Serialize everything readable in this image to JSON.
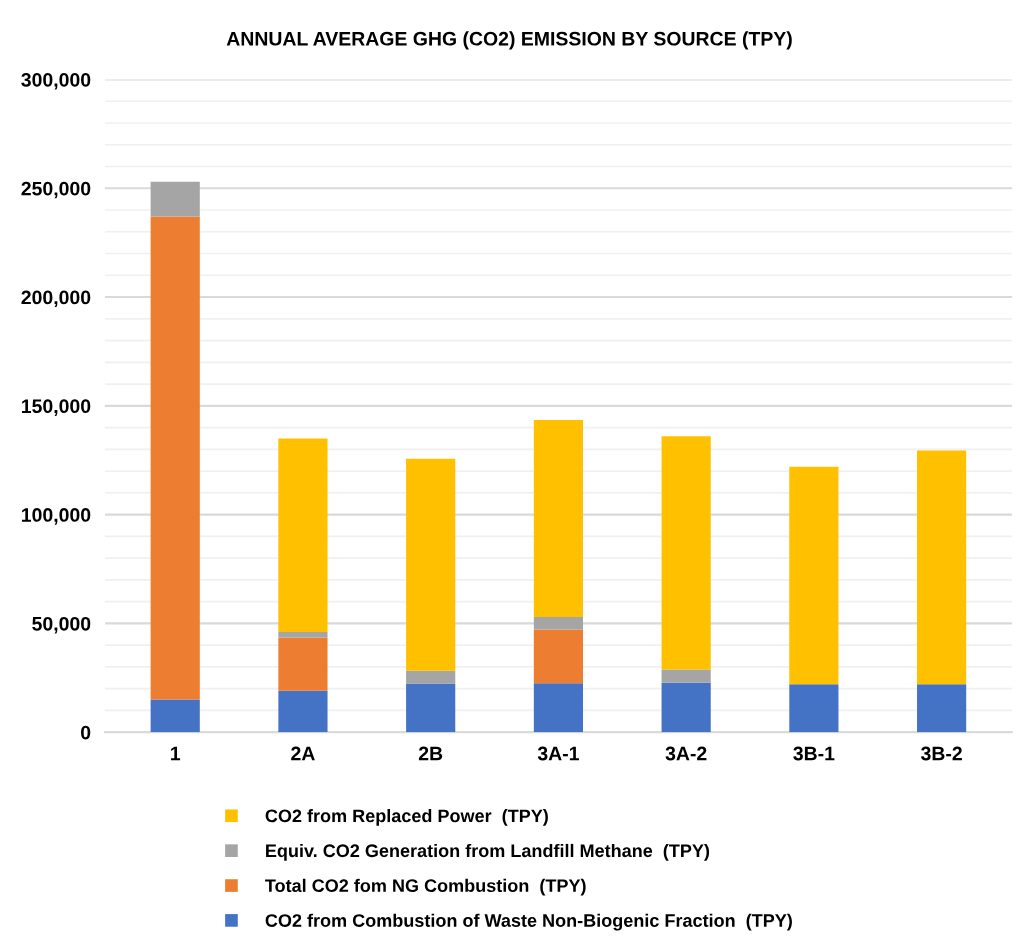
{
  "chart_data": {
    "type": "bar",
    "title": "ANNUAL AVERAGE GHG (CO2) EMISSION BY SOURCE (TPY)",
    "categories": [
      "1",
      "2A",
      "2B",
      "3A-1",
      "3A-2",
      "3B-1",
      "3B-2"
    ],
    "stacked": true,
    "series": [
      {
        "name": "CO2 from Combustion of Waste Non-Biogenic Fraction  (TPY)",
        "color": "#4472c4",
        "values": [
          15000,
          19000,
          22400,
          22500,
          22700,
          22000,
          22000
        ]
      },
      {
        "name": "Total CO2 fom NG Combustion  (TPY)",
        "color": "#ed7d31",
        "values": [
          222000,
          24500,
          0,
          24700,
          0,
          0,
          0
        ]
      },
      {
        "name": "Equiv. CO2 Generation from Landfill Methane  (TPY)",
        "color": "#a5a5a5",
        "values": [
          16000,
          2500,
          5800,
          5800,
          6100,
          null,
          null
        ]
      },
      {
        "name": "CO2 from Replaced Power  (TPY)",
        "color": "#ffc000",
        "values": [
          0,
          89000,
          97500,
          90500,
          107200,
          100000,
          107500
        ]
      }
    ],
    "ylim": [
      0,
      300000
    ],
    "yticks": [
      {
        "value": 0,
        "label": "0"
      },
      {
        "value": 10000,
        "label": null
      },
      {
        "value": 20000,
        "label": null
      },
      {
        "value": 30000,
        "label": null
      },
      {
        "value": 40000,
        "label": null
      },
      {
        "value": 50000,
        "label": "50,000"
      },
      {
        "value": 60000,
        "label": null
      },
      {
        "value": 70000,
        "label": null
      },
      {
        "value": 80000,
        "label": null
      },
      {
        "value": 90000,
        "label": null
      },
      {
        "value": 100000,
        "label": "100,000"
      },
      {
        "value": 110000,
        "label": null
      },
      {
        "value": 120000,
        "label": null
      },
      {
        "value": 130000,
        "label": null
      },
      {
        "value": 140000,
        "label": null
      },
      {
        "value": 150000,
        "label": "150,000"
      },
      {
        "value": 160000,
        "label": null
      },
      {
        "value": 170000,
        "label": null
      },
      {
        "value": 180000,
        "label": null
      },
      {
        "value": 190000,
        "label": null
      },
      {
        "value": 200000,
        "label": "200,000"
      },
      {
        "value": 210000,
        "label": null
      },
      {
        "value": 220000,
        "label": null
      },
      {
        "value": 230000,
        "label": null
      },
      {
        "value": 240000,
        "label": null
      },
      {
        "value": 250000,
        "label": "250,000"
      },
      {
        "value": 260000,
        "label": null
      },
      {
        "value": 270000,
        "label": null
      },
      {
        "value": 280000,
        "label": null
      },
      {
        "value": 290000,
        "label": null
      },
      {
        "value": 300000,
        "label": "300,000"
      }
    ],
    "grid": "y",
    "legend": "bottom"
  }
}
